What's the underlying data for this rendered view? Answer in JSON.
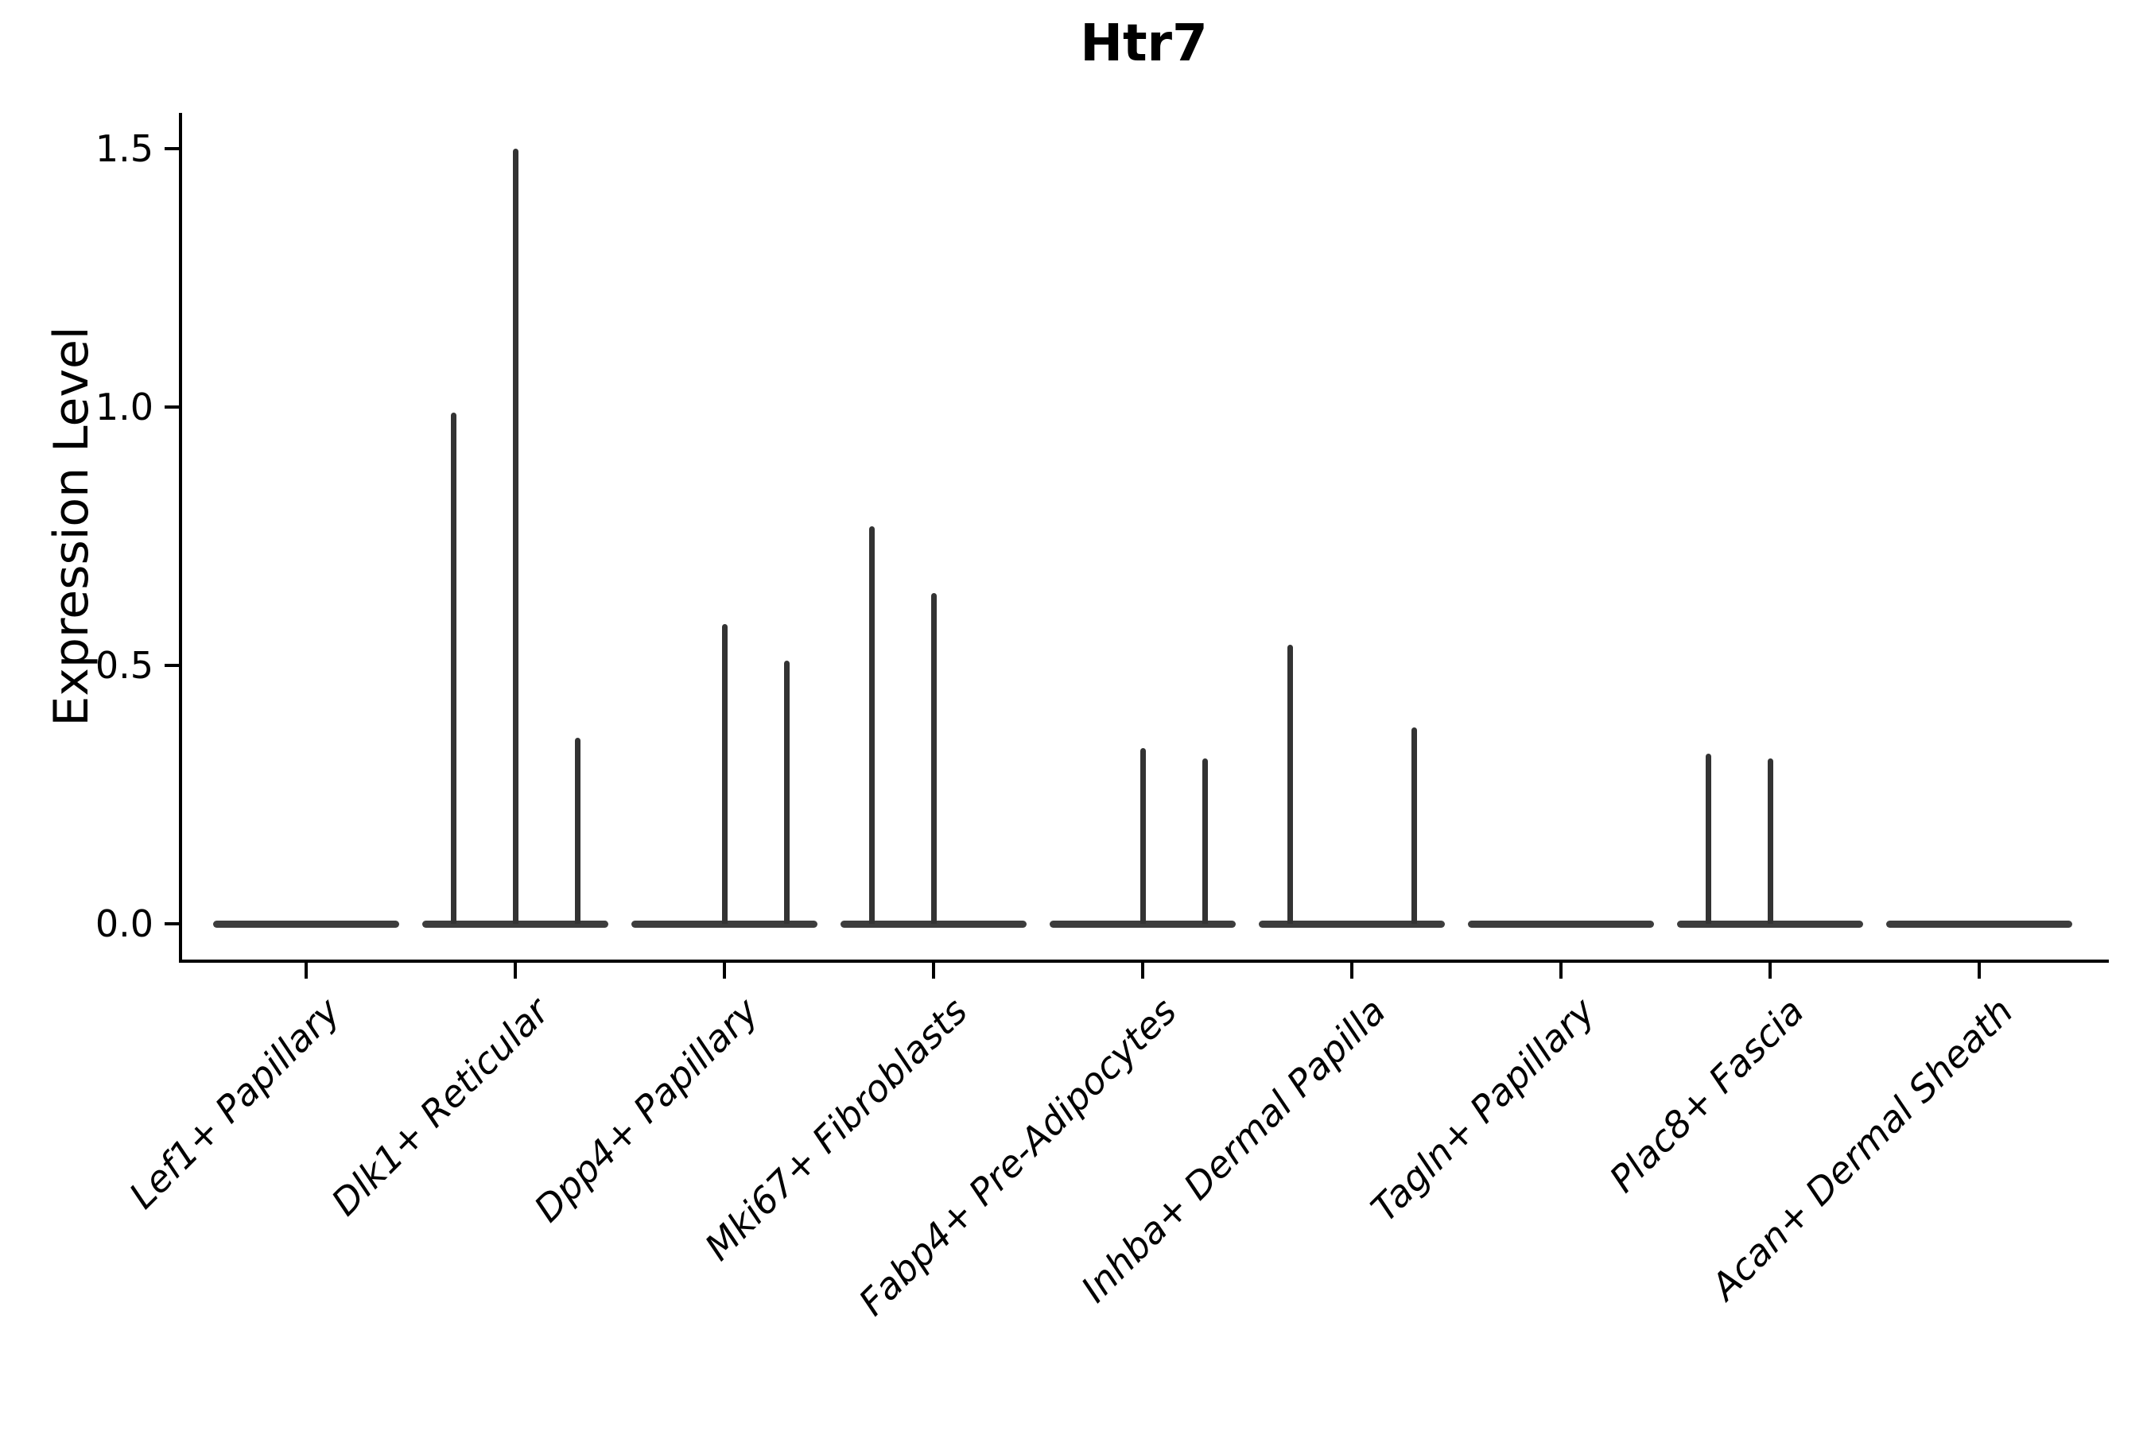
{
  "title": "Htr7",
  "axes": {
    "y_label": "Expression Level",
    "y_tick_labels": [
      "0.0",
      "0.5",
      "1.0",
      "1.5"
    ],
    "x_tick_labels": [
      "Lef1+ Papillary",
      "Dlk1+ Reticular",
      "Dpp4+ Papillary",
      "Mki67+ Fibroblasts",
      "Fabp4+ Pre-Adipocytes",
      "Inhba+ Dermal Papilla",
      "Tagln+ Papillary",
      "Plac8+ Fascia",
      "Acan+ Dermal Sheath"
    ],
    "line_color": "#000000"
  },
  "chart_data": {
    "type": "violin",
    "title": "Htr7",
    "xlabel": "",
    "ylabel": "Expression Level",
    "ylim": [
      0,
      1.55
    ],
    "y_ticks": [
      0.0,
      0.5,
      1.0,
      1.5
    ],
    "grid": "off",
    "legend": "none",
    "violin_color": "#3d3d3d",
    "categories": [
      "Lef1+ Papillary",
      "Dlk1+ Reticular",
      "Dpp4+ Papillary",
      "Mki67+ Fibroblasts",
      "Fabp4+ Pre-Adipocytes",
      "Inhba+ Dermal Papilla",
      "Tagln+ Papillary",
      "Plac8+ Fascia",
      "Acan+ Dermal Sheath"
    ],
    "series": [
      {
        "name": "Lef1+ Papillary",
        "baseline_value": 0.0,
        "spikes": []
      },
      {
        "name": "Dlk1+ Reticular",
        "baseline_value": 0.0,
        "spikes": [
          {
            "offset": -1,
            "value": 0.99
          },
          {
            "offset": 0,
            "value": 1.5
          },
          {
            "offset": 1,
            "value": 0.36
          }
        ]
      },
      {
        "name": "Dpp4+ Papillary",
        "baseline_value": 0.0,
        "spikes": [
          {
            "offset": 0,
            "value": 0.58
          },
          {
            "offset": 1,
            "value": 0.51
          }
        ]
      },
      {
        "name": "Mki67+ Fibroblasts",
        "baseline_value": 0.0,
        "spikes": [
          {
            "offset": -1,
            "value": 0.77
          },
          {
            "offset": 0,
            "value": 0.64
          }
        ]
      },
      {
        "name": "Fabp4+ Pre-Adipocytes",
        "baseline_value": 0.0,
        "spikes": [
          {
            "offset": 0,
            "value": 0.34
          },
          {
            "offset": 1,
            "value": 0.32
          }
        ]
      },
      {
        "name": "Inhba+ Dermal Papilla",
        "baseline_value": 0.0,
        "spikes": [
          {
            "offset": -1,
            "value": 0.54
          },
          {
            "offset": 1,
            "value": 0.38
          }
        ]
      },
      {
        "name": "Tagln+ Papillary",
        "baseline_value": 0.0,
        "spikes": []
      },
      {
        "name": "Plac8+ Fascia",
        "baseline_value": 0.0,
        "spikes": [
          {
            "offset": -1,
            "value": 0.33
          },
          {
            "offset": 0,
            "value": 0.32
          }
        ]
      },
      {
        "name": "Acan+ Dermal Sheath",
        "baseline_value": 0.0,
        "spikes": []
      }
    ]
  }
}
